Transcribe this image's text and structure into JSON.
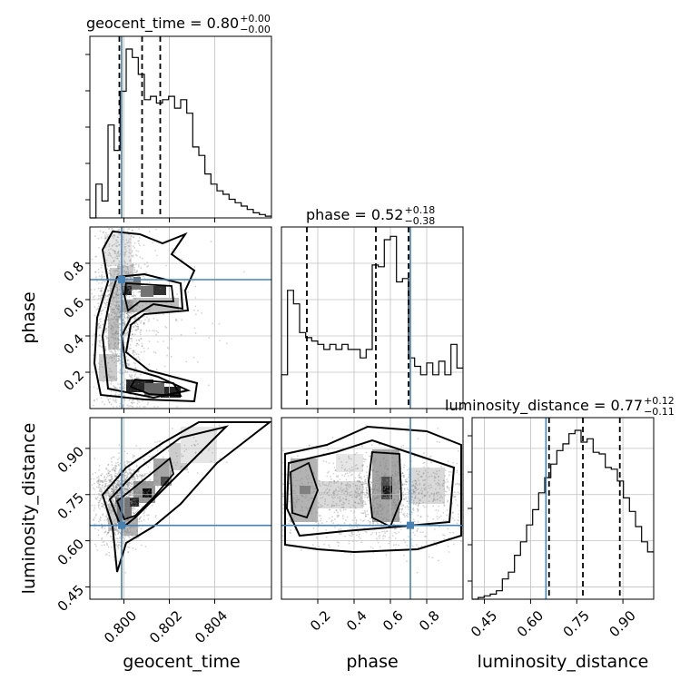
{
  "chart_data": {
    "type": "corner",
    "parameters": [
      "geocent_time",
      "phase",
      "luminosity_distance"
    ],
    "colors": {
      "truth": "#4682b4",
      "hist": "#000000",
      "grid": "#c0c0c0",
      "scatter": "#808080"
    },
    "titles": [
      {
        "param": "geocent_time",
        "text": "geocent_time = 0.80",
        "sup": "+0.00",
        "sub": "−0.00"
      },
      {
        "param": "phase",
        "text": "phase = 0.52",
        "sup": "+0.18",
        "sub": "−0.38"
      },
      {
        "param": "luminosity_distance",
        "text": "luminosity_distance = 0.77",
        "sup": "+0.12",
        "sub": "−0.11"
      }
    ],
    "ranges": {
      "geocent_time": [
        0.7985,
        0.8065
      ],
      "phase": [
        0.0,
        1.0
      ],
      "luminosity_distance": [
        0.41,
        1.0
      ]
    },
    "ticks": {
      "geocent_time": {
        "values": [
          0.8,
          0.802,
          0.804
        ],
        "labels": [
          "0.800",
          "0.802",
          "0.804"
        ]
      },
      "phase": {
        "values": [
          0.2,
          0.4,
          0.6,
          0.8
        ],
        "labels": [
          "0.2",
          "0.4",
          "0.6",
          "0.8"
        ]
      },
      "luminosity_distance": {
        "values": [
          0.45,
          0.6,
          0.75,
          0.9
        ],
        "labels": [
          "0.45",
          "0.60",
          "0.75",
          "0.90"
        ]
      }
    },
    "truths": {
      "geocent_time": 0.7999,
      "phase": 0.71,
      "luminosity_distance": 0.65
    },
    "quantiles": {
      "geocent_time": [
        0.7998,
        0.8008,
        0.8016
      ],
      "phase": [
        0.14,
        0.52,
        0.7
      ],
      "luminosity_distance": [
        0.66,
        0.77,
        0.89
      ]
    },
    "histograms": {
      "geocent_time": [
        0.0,
        0.2,
        0.1,
        0.55,
        0.4,
        0.75,
        1.0,
        0.95,
        0.85,
        0.7,
        0.72,
        0.68,
        0.7,
        0.72,
        0.65,
        0.7,
        0.62,
        0.42,
        0.37,
        0.26,
        0.2,
        0.16,
        0.14,
        0.11,
        0.09,
        0.07,
        0.05,
        0.03,
        0.02,
        0.01
      ],
      "phase": [
        0.2,
        0.7,
        0.62,
        0.45,
        0.42,
        0.4,
        0.38,
        0.35,
        0.38,
        0.35,
        0.38,
        0.35,
        0.35,
        0.3,
        0.35,
        0.85,
        0.84,
        1.0,
        1.02,
        0.75,
        0.77,
        0.3,
        0.25,
        0.2,
        0.27,
        0.2,
        0.28,
        0.2,
        0.38,
        0.24
      ],
      "luminosity_distance": [
        0.0,
        0.01,
        0.02,
        0.03,
        0.05,
        0.12,
        0.16,
        0.26,
        0.34,
        0.44,
        0.53,
        0.63,
        0.72,
        0.8,
        0.88,
        0.92,
        0.98,
        1.0,
        0.93,
        0.95,
        0.87,
        0.86,
        0.78,
        0.77,
        0.7,
        0.6,
        0.52,
        0.43,
        0.34,
        0.28
      ]
    },
    "grid": true
  }
}
